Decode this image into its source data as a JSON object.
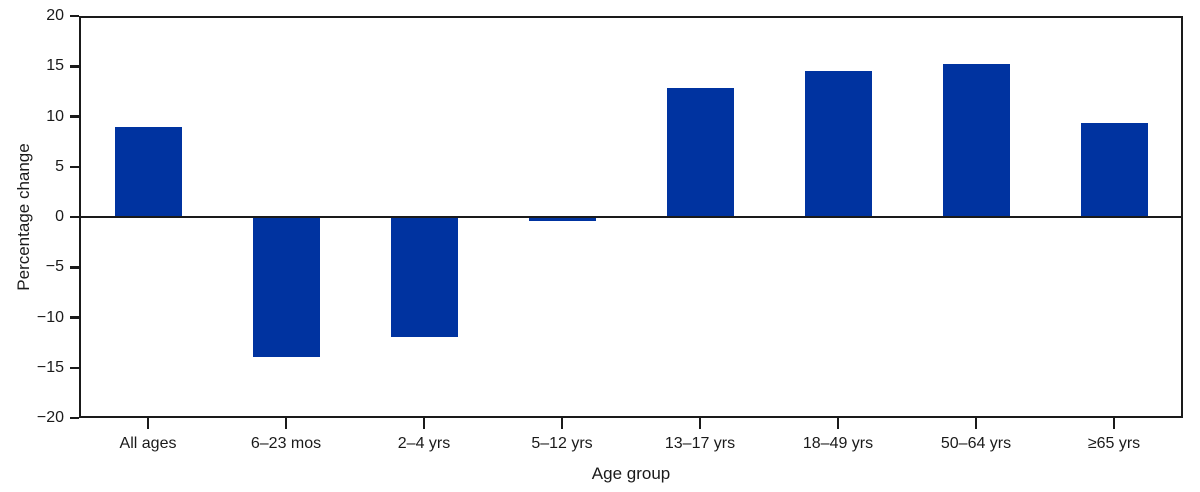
{
  "chart_data": {
    "type": "bar",
    "title": "",
    "xlabel": "Age group",
    "ylabel": "Percentage change",
    "categories": [
      "All ages",
      "6–23 mos",
      "2–4 yrs",
      "5–12 yrs",
      "13–17 yrs",
      "18–49 yrs",
      "50–64 yrs",
      "≥65 yrs"
    ],
    "values": [
      9.0,
      -13.9,
      -11.9,
      -0.4,
      12.8,
      14.5,
      15.2,
      9.4
    ],
    "ylim": [
      -20,
      20
    ],
    "y_ticks": [
      {
        "value": 20,
        "label": "20"
      },
      {
        "value": 15,
        "label": "15"
      },
      {
        "value": 10,
        "label": "10"
      },
      {
        "value": 5,
        "label": "5"
      },
      {
        "value": 0,
        "label": "0"
      },
      {
        "value": -5,
        "label": "−5"
      },
      {
        "value": -10,
        "label": "−10"
      },
      {
        "value": -15,
        "label": "−15"
      },
      {
        "value": -20,
        "label": "−20"
      }
    ],
    "grid": false,
    "legend": null,
    "bar_color": "#0033A0",
    "axis_color": "#1a1a1a"
  }
}
